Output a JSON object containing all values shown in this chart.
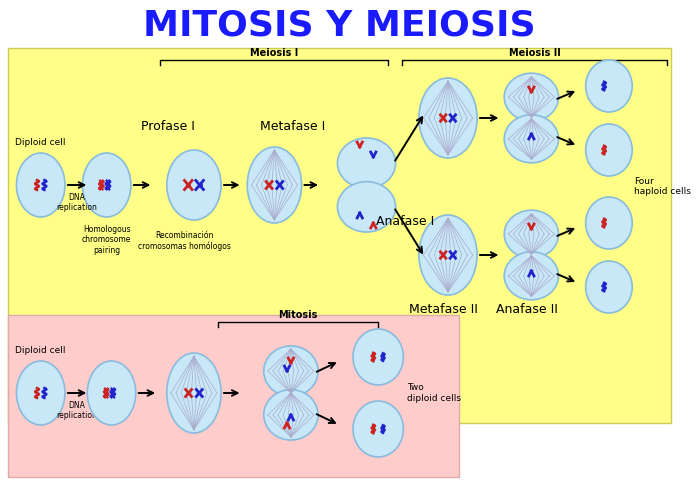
{
  "title": "MITOSIS Y MEIOSIS",
  "title_color": "#1a1aff",
  "title_fontsize": 26,
  "bg_color": "#ffffff",
  "meiosis_bg": "#ffff88",
  "mitosis_bg": "#ffcccc",
  "cell_fill": "#c8e8f8",
  "cell_edge": "#88bbdd",
  "spindle_color": "#aaaacc",
  "chr_red": "#cc2222",
  "chr_blue": "#2222cc",
  "labels": {
    "profase_i": "Profase I",
    "metafase_i": "Metafase I",
    "anafase_i": "Anafase I",
    "metafase_ii": "Metafase II",
    "anafase_ii": "Anafase II",
    "meiosis_i": "Meiosis I",
    "meiosis_ii": "Meiosis II",
    "diploid_cell_1": "Diploid cell",
    "dna_rep_1": "DNA\nreplication",
    "homo_chrom": "Homologous\nchromosome\npairing",
    "recomb": "Recombinación\ncromosomas homólogos",
    "four_haploid": "Four\nhaploid cells",
    "diploid_cell_2": "Diploid cell",
    "dna_rep_2": "DNA\nreplication",
    "mitosis_label": "Mitosis",
    "two_diploid": "Two\ndiploid cells"
  }
}
